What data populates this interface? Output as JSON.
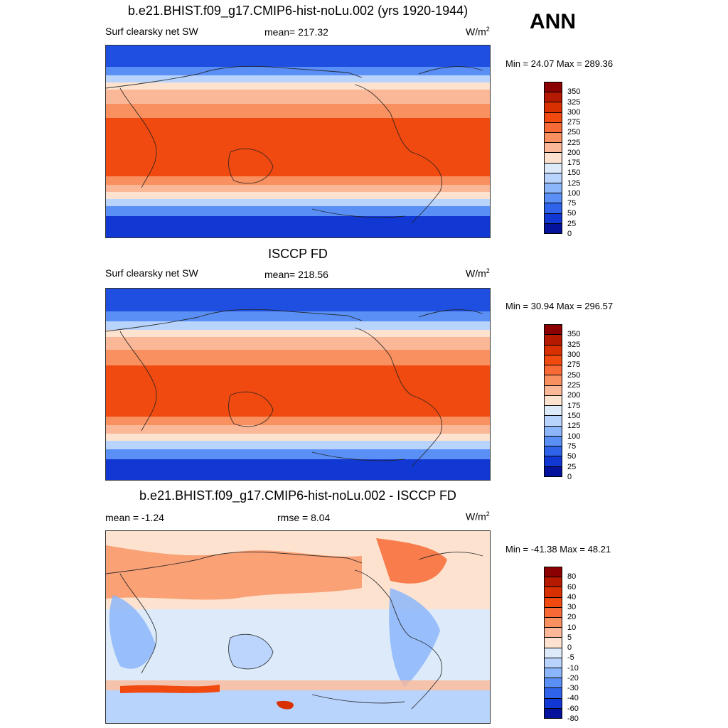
{
  "season": "ANN",
  "panels": [
    {
      "title": "b.e21.BHIST.f09_g17.CMIP6-hist-noLu.002 (yrs 1920-1944)",
      "left_label": "Surf clearsky net SW",
      "center_label": "mean= 217.32",
      "units": "W/m",
      "units_sup": "2",
      "minmax": "Min =  24.07 Max = 289.36",
      "colorbar": {
        "labels": [
          "350",
          "325",
          "300",
          "275",
          "250",
          "225",
          "200",
          "175",
          "150",
          "125",
          "100",
          "75",
          "50",
          "25",
          "0"
        ],
        "colors": [
          "#8b0000",
          "#b51a00",
          "#d93000",
          "#f04a10",
          "#f86a35",
          "#f9905f",
          "#fbb898",
          "#fde3cf",
          "#dceaf9",
          "#b8d3fc",
          "#8cb6fb",
          "#5a8ff5",
          "#2e63ea",
          "#1238d4",
          "#05129b"
        ]
      }
    },
    {
      "title": "ISCCP FD",
      "left_label": "Surf clearsky net SW",
      "center_label": "mean= 218.56",
      "units": "W/m",
      "units_sup": "2",
      "minmax": "Min =  30.94 Max = 296.57",
      "colorbar": {
        "labels": [
          "350",
          "325",
          "300",
          "275",
          "250",
          "225",
          "200",
          "175",
          "150",
          "125",
          "100",
          "75",
          "50",
          "25",
          "0"
        ],
        "colors": [
          "#8b0000",
          "#b51a00",
          "#d93000",
          "#f04a10",
          "#f86a35",
          "#f9905f",
          "#fbb898",
          "#fde3cf",
          "#dceaf9",
          "#b8d3fc",
          "#8cb6fb",
          "#5a8ff5",
          "#2e63ea",
          "#1238d4",
          "#05129b"
        ]
      }
    },
    {
      "title": "b.e21.BHIST.f09_g17.CMIP6-hist-noLu.002 - ISCCP FD",
      "left_label": "mean =  -1.24",
      "center_label": "rmse =   8.04",
      "units": "W/m",
      "units_sup": "2",
      "minmax": "Min = -41.38 Max =  48.21",
      "colorbar": {
        "labels": [
          "80",
          "60",
          "40",
          "30",
          "20",
          "10",
          "5",
          "0",
          "-5",
          "-10",
          "-20",
          "-30",
          "-40",
          "-60",
          "-80"
        ],
        "colors": [
          "#8b0000",
          "#b51a00",
          "#d93000",
          "#f04a10",
          "#f86a35",
          "#f9905f",
          "#fbb898",
          "#fde3cf",
          "#dceaf9",
          "#b8d3fc",
          "#8cb6fb",
          "#5a8ff5",
          "#2e63ea",
          "#1238d4",
          "#05129b"
        ]
      }
    }
  ]
}
